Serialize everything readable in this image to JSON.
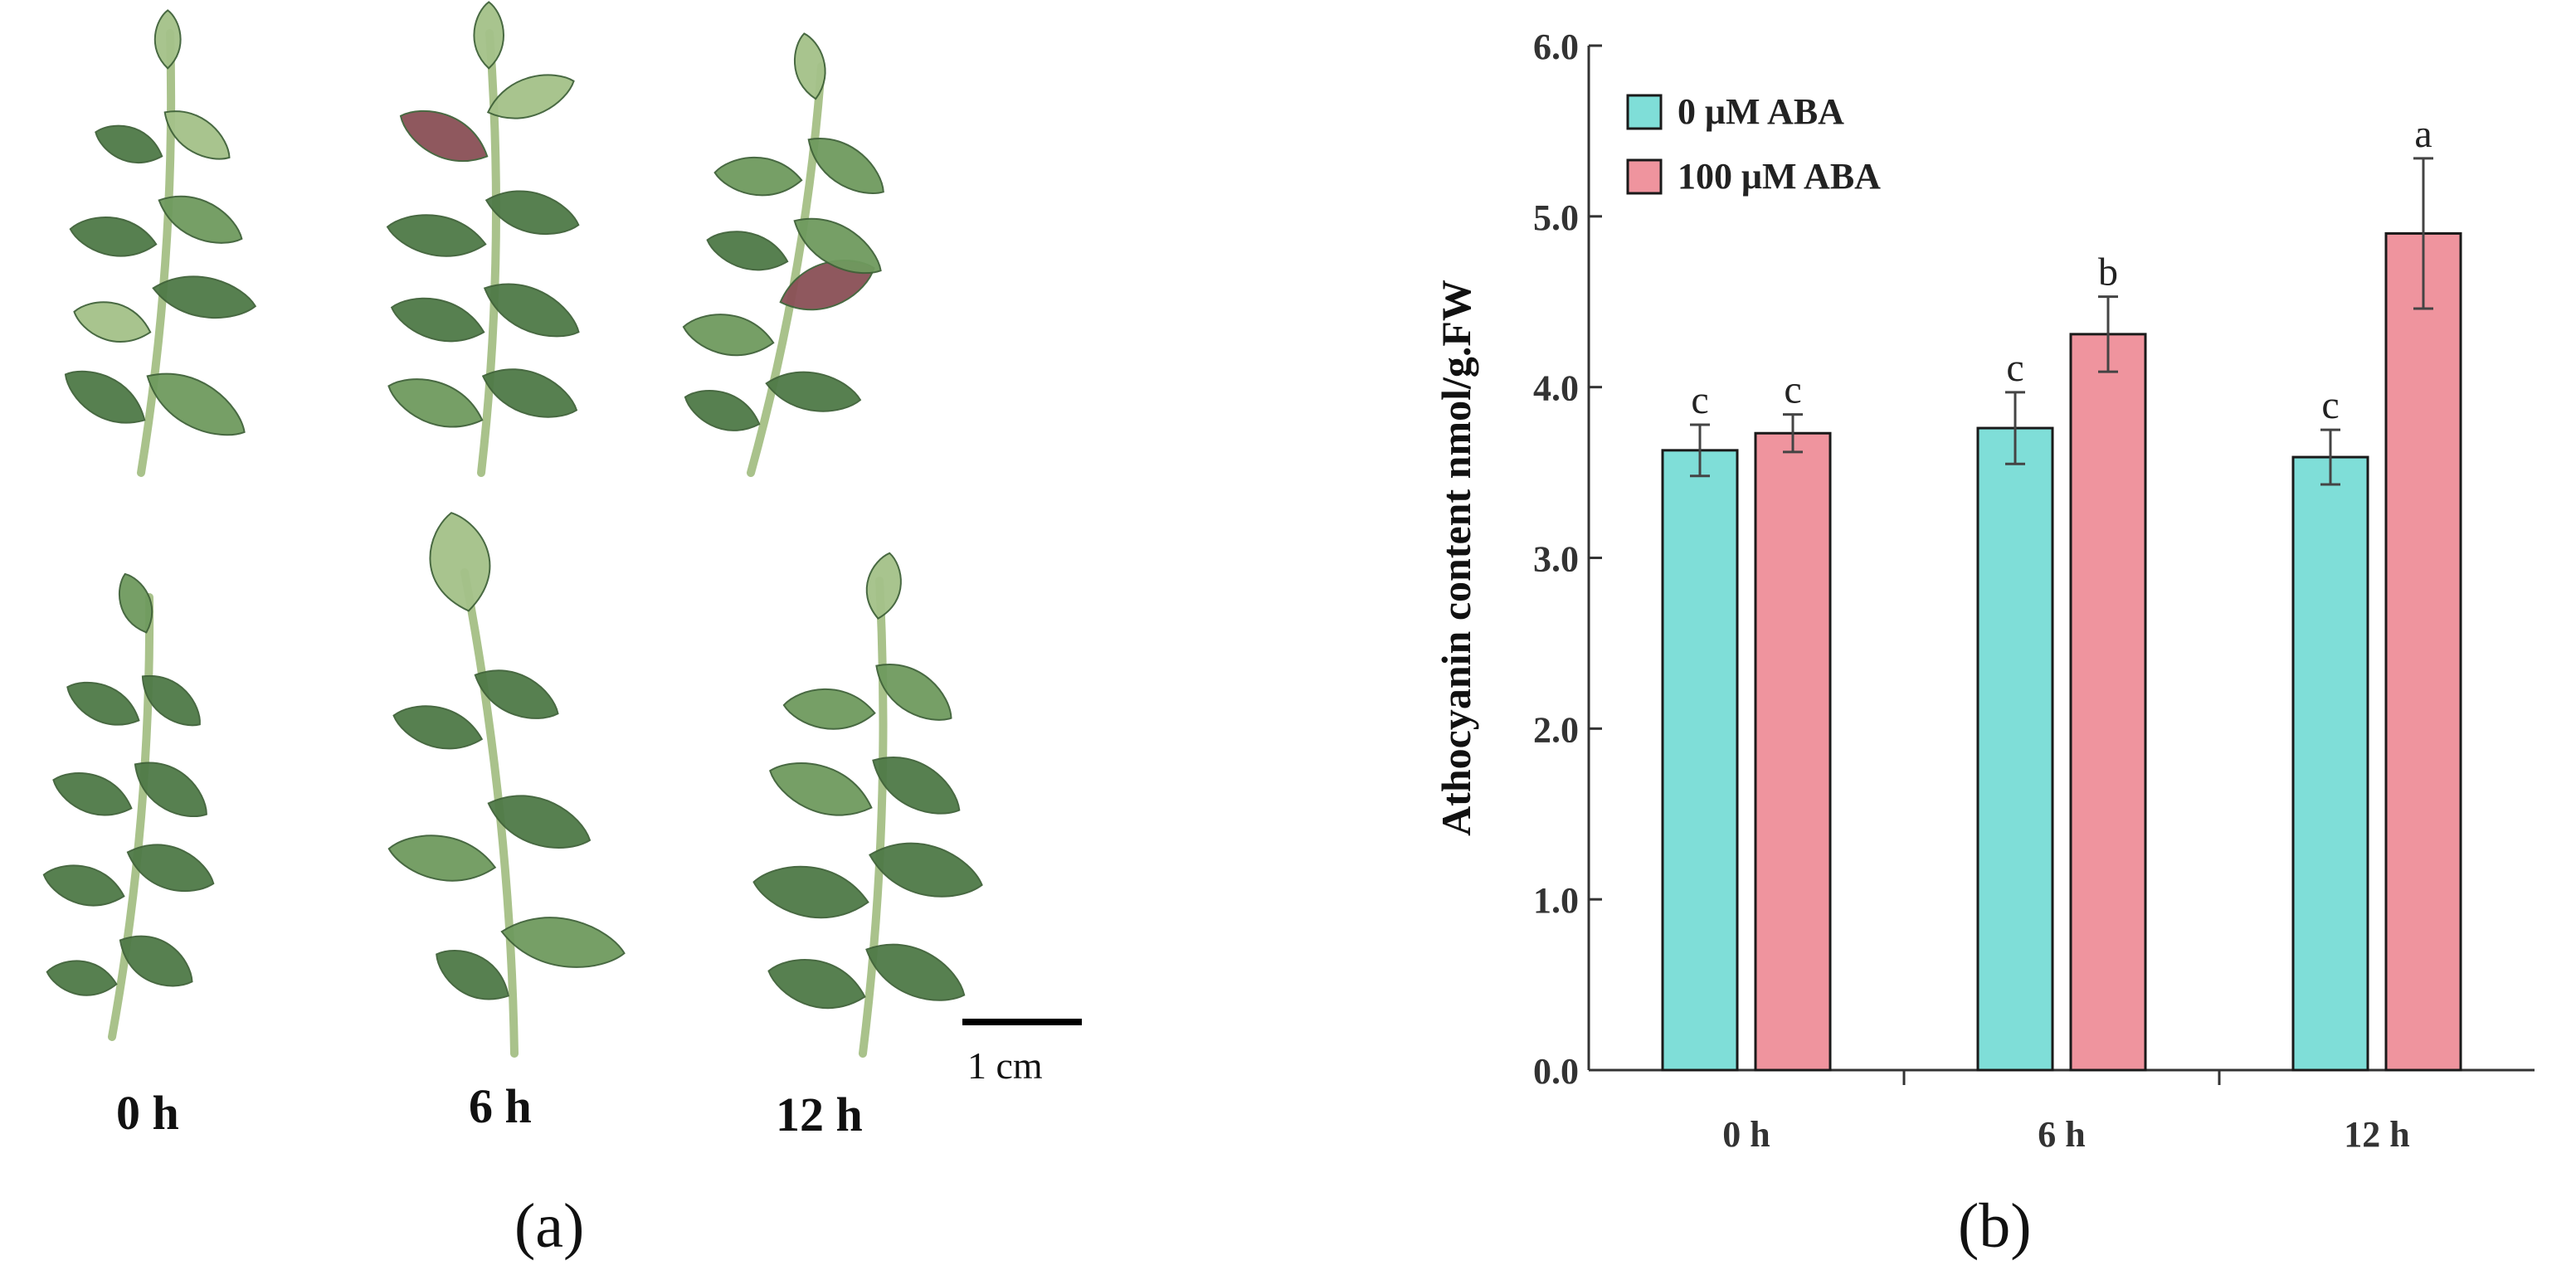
{
  "panel_a": {
    "label": "(a)",
    "time_labels": [
      "0 h",
      "6 h",
      "12 h"
    ],
    "scale_bar_label": "1 cm",
    "colors": {
      "leaf_dark": "#4f7a47",
      "leaf_mid": "#6f9a5e",
      "leaf_light": "#a4c189",
      "stem": "#a9c28b",
      "red_tinge": "#8a5056"
    }
  },
  "panel_b": {
    "label": "(b)"
  },
  "chart_data": {
    "type": "bar",
    "categories": [
      "0 h",
      "6 h",
      "12 h"
    ],
    "series": [
      {
        "name": "0 μM ABA",
        "color": "#7fded8",
        "values": [
          3.63,
          3.76,
          3.59
        ],
        "errors": [
          0.15,
          0.21,
          0.16
        ],
        "letters": [
          "c",
          "c",
          "c"
        ]
      },
      {
        "name": "100 μM ABA",
        "color": "#ef949e",
        "values": [
          3.73,
          4.31,
          4.9
        ],
        "errors": [
          0.11,
          0.22,
          0.44
        ],
        "letters": [
          "c",
          "b",
          "a"
        ]
      }
    ],
    "ylabel": "Athocyanin content nmol/g.FW",
    "xlabel": "",
    "ylim": [
      0.0,
      6.0
    ],
    "yticks": [
      "0.0",
      "1.0",
      "2.0",
      "3.0",
      "4.0",
      "5.0",
      "6.0"
    ],
    "legend_position": "top-left",
    "grid": false
  }
}
